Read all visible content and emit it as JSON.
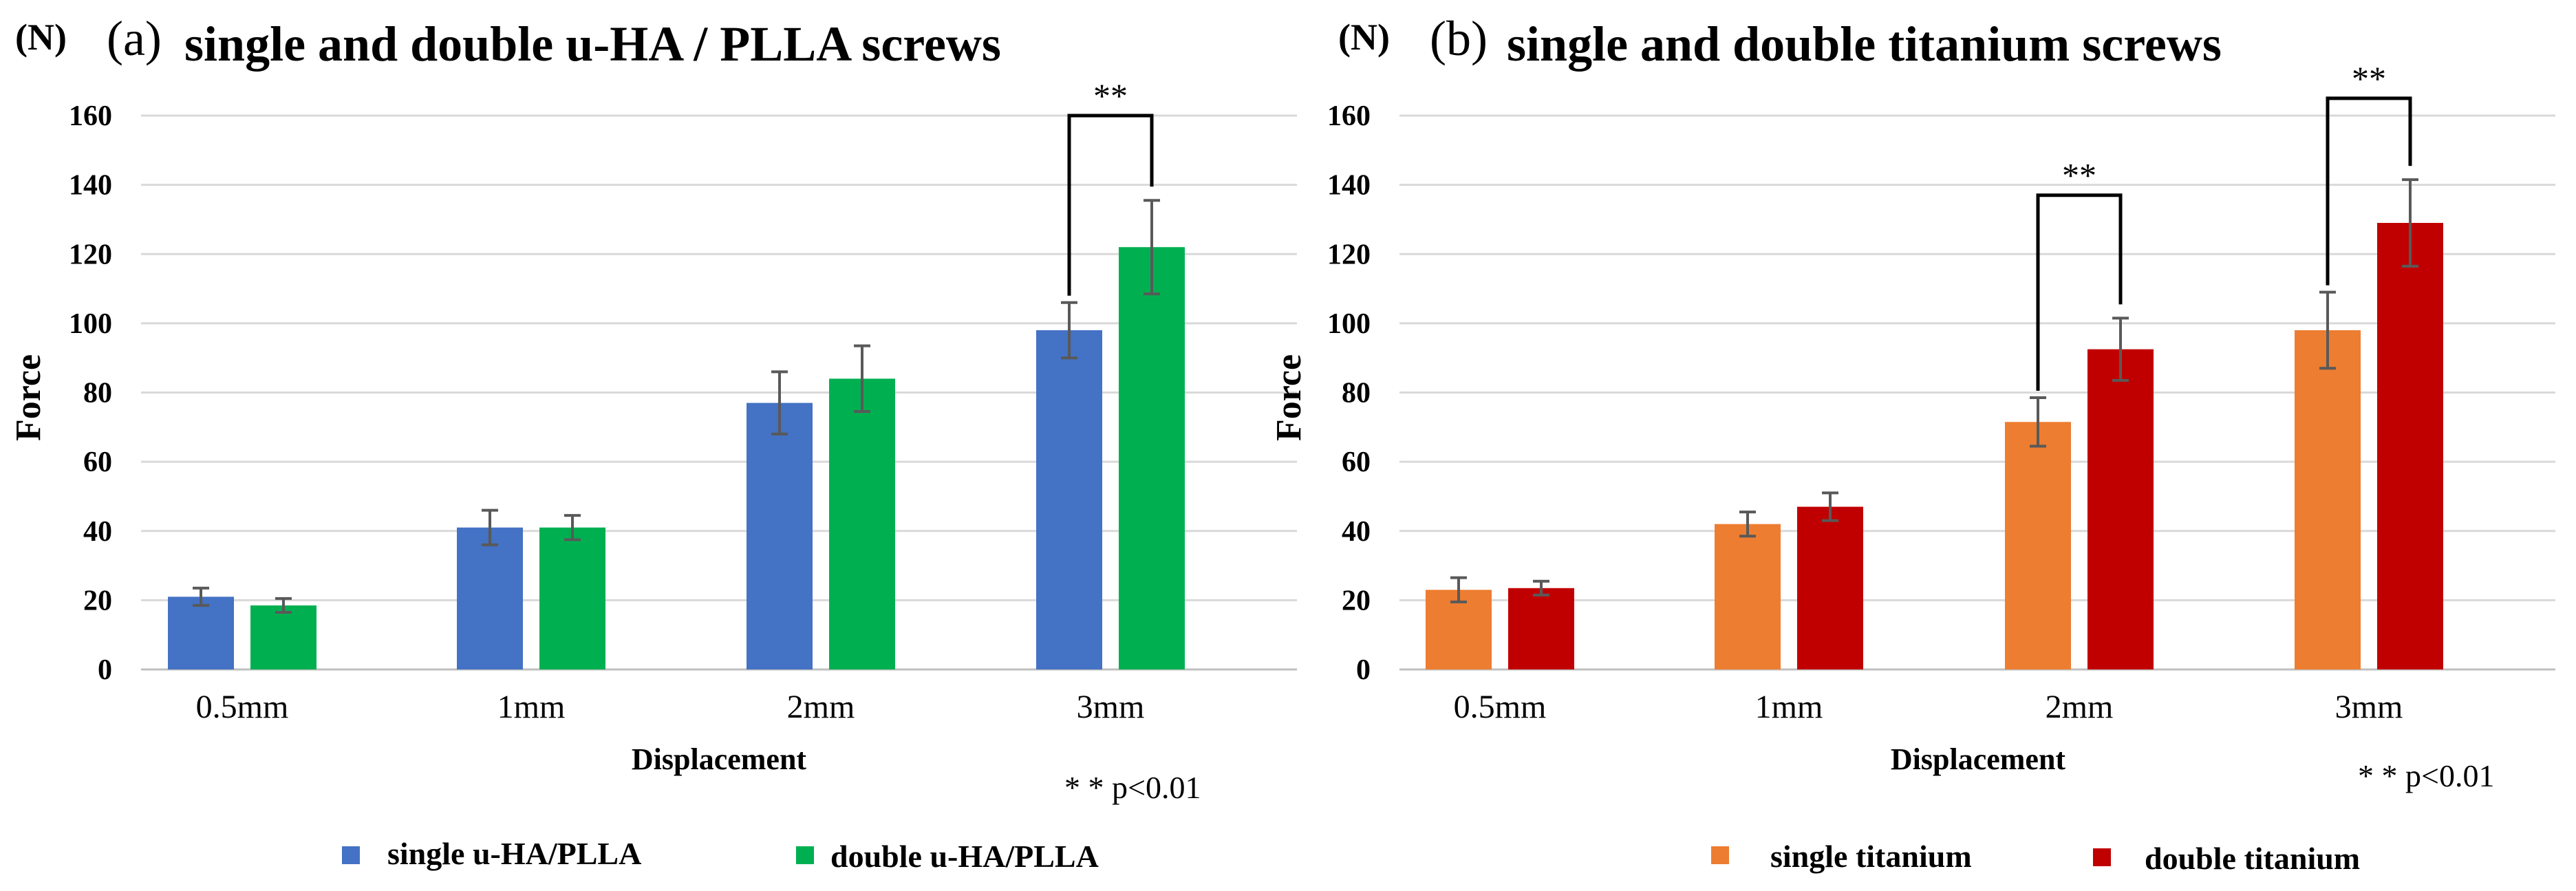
{
  "panels": [
    {
      "unit_label": "(N)",
      "panel_label": "(a)",
      "title": "single and double u-HA / PLLA screws",
      "ylabel": "Force",
      "xlabel": "Displacement",
      "note": "* * p<0.01"
    },
    {
      "unit_label": "(N)",
      "panel_label": "(b)",
      "title": "single and double titanium screws",
      "ylabel": "Force",
      "xlabel": "Displacement",
      "note": "* * p<0.01"
    }
  ],
  "chart_data": [
    {
      "type": "bar",
      "title": "single and double u-HA / PLLA screws",
      "xlabel": "Displacement",
      "ylabel": "Force",
      "ylim": [
        0,
        160
      ],
      "yticks": [
        0,
        20,
        40,
        60,
        80,
        100,
        120,
        140,
        160
      ],
      "grid": true,
      "legend_position": "bottom",
      "categories": [
        "0.5mm",
        "1mm",
        "2mm",
        "3mm"
      ],
      "series": [
        {
          "name": "single u-HA/PLLA",
          "color": "#4472C4",
          "values": [
            21,
            41,
            77,
            98
          ],
          "errors": [
            2.5,
            5,
            9,
            8
          ]
        },
        {
          "name": "double u-HA/PLLA",
          "color": "#00B050",
          "values": [
            18.5,
            41,
            84,
            122
          ],
          "errors": [
            2,
            3.5,
            9.5,
            13.5
          ]
        }
      ],
      "significance": [
        {
          "category": "3mm",
          "label": "**",
          "top": 160
        }
      ]
    },
    {
      "type": "bar",
      "title": "single and double titanium screws",
      "xlabel": "Displacement",
      "ylabel": "Force",
      "ylim": [
        0,
        160
      ],
      "yticks": [
        0,
        20,
        40,
        60,
        80,
        100,
        120,
        140,
        160
      ],
      "grid": true,
      "legend_position": "bottom",
      "categories": [
        "0.5mm",
        "1mm",
        "2mm",
        "3mm"
      ],
      "series": [
        {
          "name": "single titanium",
          "color": "#ED7D31",
          "values": [
            23,
            42,
            71.5,
            98
          ],
          "errors": [
            3.5,
            3.5,
            7,
            11
          ]
        },
        {
          "name": "double titanium",
          "color": "#C00000",
          "values": [
            23.5,
            47,
            92.5,
            129
          ],
          "errors": [
            2,
            4,
            9,
            12.5
          ]
        }
      ],
      "significance": [
        {
          "category": "2mm",
          "label": "**",
          "top": 137
        },
        {
          "category": "3mm",
          "label": "**",
          "top": 165
        }
      ]
    }
  ]
}
